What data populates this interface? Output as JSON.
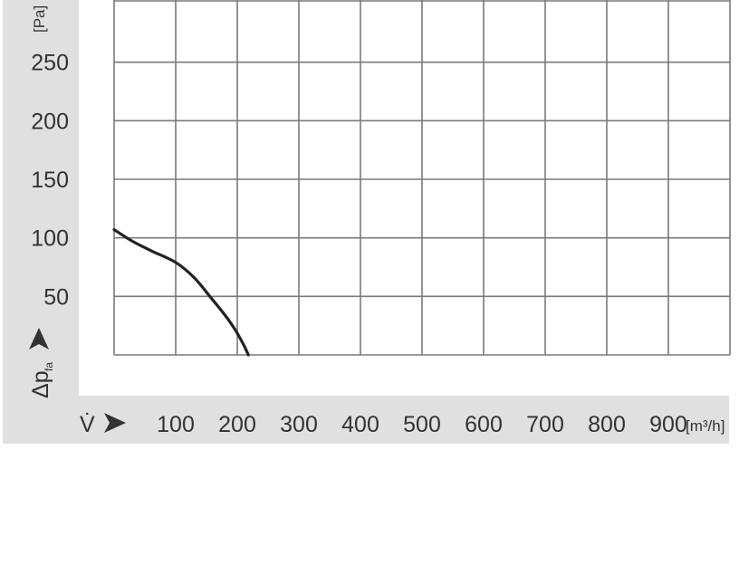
{
  "chart_data": {
    "type": "line",
    "title": "",
    "xlabel": "V̇",
    "xunit": "[m³/h]",
    "ylabel": "Δp",
    "ylabel_subscript": "fa",
    "yunit": "[Pa]",
    "xlim": [
      0,
      1000
    ],
    "ylim": [
      0,
      300
    ],
    "xticks": [
      100,
      200,
      300,
      400,
      500,
      600,
      700,
      800,
      900
    ],
    "yticks": [
      50,
      100,
      150,
      200,
      250
    ],
    "grid": true,
    "series": [
      {
        "x": [
          0,
          30,
          60,
          100,
          130,
          157,
          180,
          196,
          210,
          218
        ],
        "y": [
          107,
          97,
          89,
          79,
          66,
          49,
          34,
          22,
          9,
          0
        ]
      }
    ],
    "colors": {
      "panel": "#e0e0e0",
      "grid": "#7a7a7a",
      "curve": "#222222",
      "text": "#333333"
    }
  }
}
